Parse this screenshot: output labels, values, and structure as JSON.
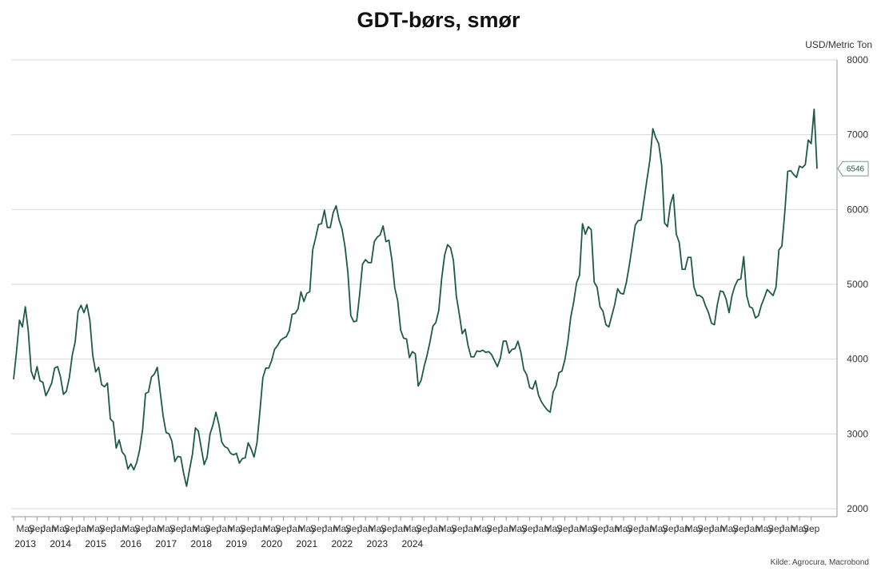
{
  "chart_data": {
    "type": "line",
    "title": "GDT-børs, smør",
    "unit_label": "USD/Metric Ton",
    "source": "Kilde: Agrocura, Macrobond",
    "ylim": [
      2000,
      8000
    ],
    "y_ticks": [
      2000,
      3000,
      4000,
      5000,
      6000,
      7000,
      8000
    ],
    "y_axis_position": "right",
    "grid": true,
    "legend": "none",
    "line_color": "#1e5b41",
    "last_value_label": "6546",
    "month_tick_labels": [
      "May",
      "Sep",
      "Jan"
    ],
    "year_labels": [
      "2013",
      "2014",
      "2015",
      "2016",
      "2017",
      "2018",
      "2019",
      "2020",
      "2021",
      "2022",
      "2023",
      "2024"
    ],
    "series": [
      {
        "x_start": "2013-01",
        "x_end": "2024-08",
        "values": [
          3730,
          4100,
          4520,
          4430,
          4700,
          4380,
          3840,
          3730,
          3900,
          3710,
          3690,
          3510,
          3590,
          3680,
          3880,
          3900,
          3760,
          3530,
          3570,
          3750,
          4050,
          4230,
          4640,
          4720,
          4620,
          4730,
          4520,
          4050,
          3830,
          3890,
          3660,
          3630,
          3680,
          3200,
          3160,
          2810,
          2920,
          2760,
          2710,
          2530,
          2600,
          2520,
          2620,
          2790,
          3060,
          3540,
          3560,
          3760,
          3800,
          3890,
          3560,
          3240,
          3020,
          3000,
          2900,
          2630,
          2700,
          2690,
          2470,
          2300,
          2520,
          2730,
          3080,
          3040,
          2810,
          2590,
          2690,
          3000,
          3120,
          3290,
          3130,
          2890,
          2830,
          2810,
          2740,
          2720,
          2740,
          2610,
          2670,
          2680,
          2880,
          2800,
          2690,
          2880,
          3300,
          3750,
          3880,
          3880,
          3980,
          4130,
          4180,
          4250,
          4280,
          4300,
          4380,
          4600,
          4610,
          4670,
          4900,
          4770,
          4880,
          4900,
          5460,
          5620,
          5800,
          5810,
          5990,
          5760,
          5760,
          5960,
          6050,
          5860,
          5740,
          5510,
          5160,
          4580,
          4500,
          4510,
          4860,
          5270,
          5330,
          5290,
          5290,
          5570,
          5630,
          5660,
          5780,
          5570,
          5590,
          5330,
          4950,
          4780,
          4390,
          4280,
          4270,
          4020,
          4100,
          4070,
          3640,
          3720,
          3900,
          4050,
          4230,
          4440,
          4490,
          4650,
          5080,
          5390,
          5530,
          5490,
          5320,
          4840,
          4600,
          4340,
          4400,
          4180,
          4030,
          4030,
          4110,
          4100,
          4120,
          4090,
          4100,
          4060,
          3980,
          3900,
          4010,
          4240,
          4240,
          4080,
          4130,
          4140,
          4240,
          4090,
          3860,
          3790,
          3620,
          3600,
          3710,
          3520,
          3430,
          3370,
          3320,
          3290,
          3560,
          3640,
          3820,
          3840,
          3990,
          4230,
          4560,
          4760,
          5020,
          5120,
          5810,
          5670,
          5770,
          5730,
          5030,
          4960,
          4700,
          4640,
          4460,
          4430,
          4580,
          4730,
          4940,
          4880,
          4870,
          5030,
          5260,
          5520,
          5790,
          5850,
          5860,
          6130,
          6400,
          6660,
          7080,
          6960,
          6880,
          6600,
          5820,
          5770,
          6070,
          6200,
          5670,
          5560,
          5200,
          5200,
          5360,
          5360,
          4970,
          4850,
          4850,
          4820,
          4710,
          4620,
          4480,
          4460,
          4730,
          4910,
          4900,
          4800,
          4620,
          4850,
          4980,
          5060,
          5070,
          5370,
          4850,
          4700,
          4680,
          4550,
          4580,
          4720,
          4820,
          4930,
          4890,
          4850,
          4960,
          5460,
          5510,
          5960,
          6510,
          6520,
          6470,
          6430,
          6580,
          6560,
          6600,
          6930,
          6880,
          7340,
          6546
        ]
      }
    ]
  }
}
